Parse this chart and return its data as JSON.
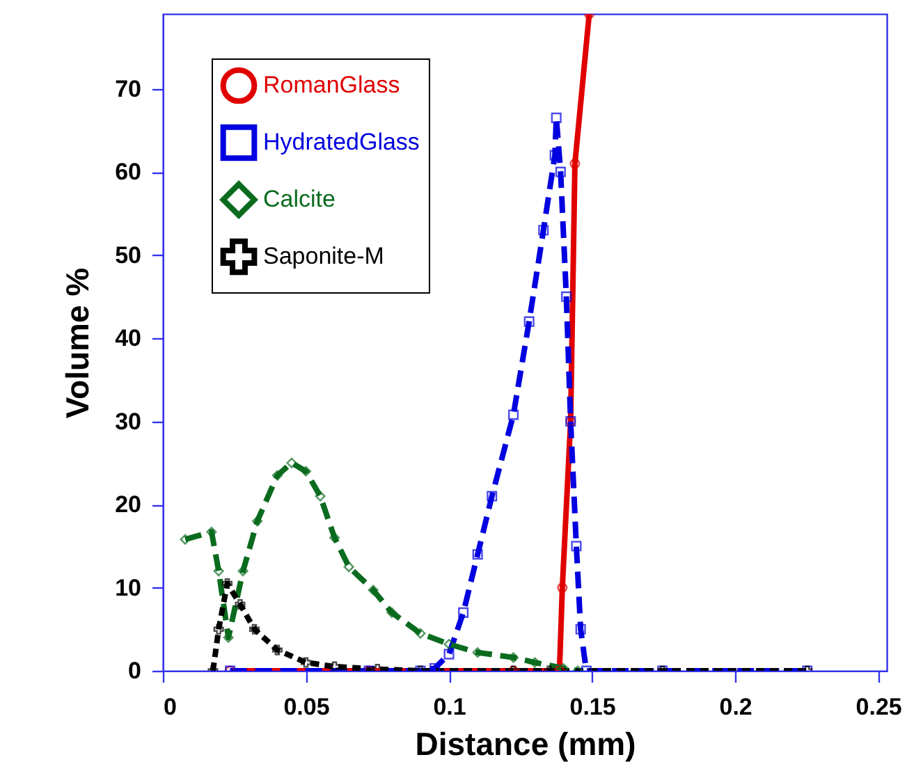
{
  "chart_data": {
    "type": "line",
    "xlabel": "Distance (mm)",
    "ylabel": "Volume %",
    "xlim": [
      0,
      0.253
    ],
    "ylim": [
      0,
      79
    ],
    "xticks": [
      0,
      0.05,
      0.1,
      0.15,
      0.2,
      0.25
    ],
    "yticks": [
      0,
      10,
      20,
      30,
      40,
      50,
      60,
      70
    ],
    "grid": false,
    "legend": "top left",
    "series": [
      {
        "name": "RomanGlass",
        "color": "#e00000",
        "marker": "circle",
        "line_style": "solid",
        "x": [
          0.0235,
          0.072,
          0.1225,
          0.1386,
          0.1396,
          0.1425,
          0.144,
          0.149
        ],
        "values": [
          0,
          0,
          0,
          0,
          10,
          30,
          61,
          79
        ]
      },
      {
        "name": "HydratedGlass",
        "color": "#0000e0",
        "marker": "square",
        "line_style": "dashed",
        "x": [
          0.0235,
          0.072,
          0.09,
          0.095,
          0.1,
          0.105,
          0.11,
          0.115,
          0.1225,
          0.128,
          0.133,
          0.137,
          0.1375,
          0.139,
          0.141,
          0.1425,
          0.1445,
          0.146,
          0.148,
          0.1746,
          0.2252
        ],
        "values": [
          0,
          0,
          0,
          0.3,
          2,
          7,
          14,
          21,
          30.8,
          42,
          53,
          62,
          66.5,
          60,
          45,
          30,
          15,
          5,
          0,
          0,
          0
        ]
      },
      {
        "name": "Calcite",
        "color": "#0a6b1e",
        "marker": "diamond",
        "line_style": "dashed",
        "x": [
          0.0078,
          0.017,
          0.0195,
          0.0229,
          0.028,
          0.033,
          0.04,
          0.045,
          0.05,
          0.055,
          0.06,
          0.065,
          0.0735,
          0.08,
          0.09,
          0.1,
          0.11,
          0.1225,
          0.13,
          0.14,
          0.145
        ],
        "values": [
          15.8,
          16.7,
          12,
          4,
          12,
          18,
          23.5,
          25,
          24,
          21,
          16,
          12.5,
          9.7,
          7,
          4.5,
          3.2,
          2.2,
          1.6,
          1,
          0.3,
          0
        ]
      },
      {
        "name": "Saponite-M",
        "color": "#000000",
        "marker": "cross",
        "line_style": "dotted",
        "x": [
          0.0175,
          0.0195,
          0.0225,
          0.027,
          0.032,
          0.04,
          0.05,
          0.06,
          0.075,
          0.09,
          0.1225,
          0.135,
          0.1746,
          0.2252
        ],
        "values": [
          0,
          5,
          10.5,
          8,
          5,
          2.5,
          1,
          0.5,
          0.2,
          0,
          0,
          0,
          0,
          0
        ]
      }
    ]
  }
}
